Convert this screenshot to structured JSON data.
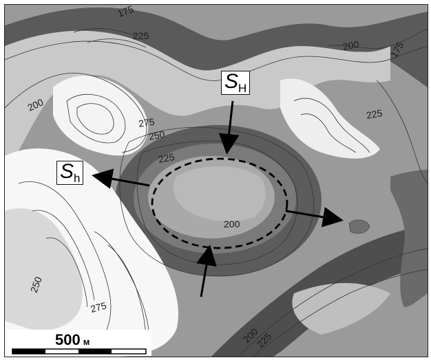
{
  "contour_labels": {
    "c175a": "175",
    "c175b": "175",
    "c225a": "225",
    "c200a": "200",
    "c200b": "200",
    "c275a": "275",
    "c250a": "250",
    "c225b": "225",
    "c225c": "225",
    "c200c": "200",
    "c250b": "250",
    "c275b": "275",
    "c200d": "200",
    "c225d": "225"
  },
  "callouts": {
    "s_upper": {
      "main": "S",
      "sub": "H"
    },
    "s_lower": {
      "main": "S",
      "sub": "h"
    }
  },
  "scalebar": {
    "value": "500",
    "unit": "м"
  }
}
